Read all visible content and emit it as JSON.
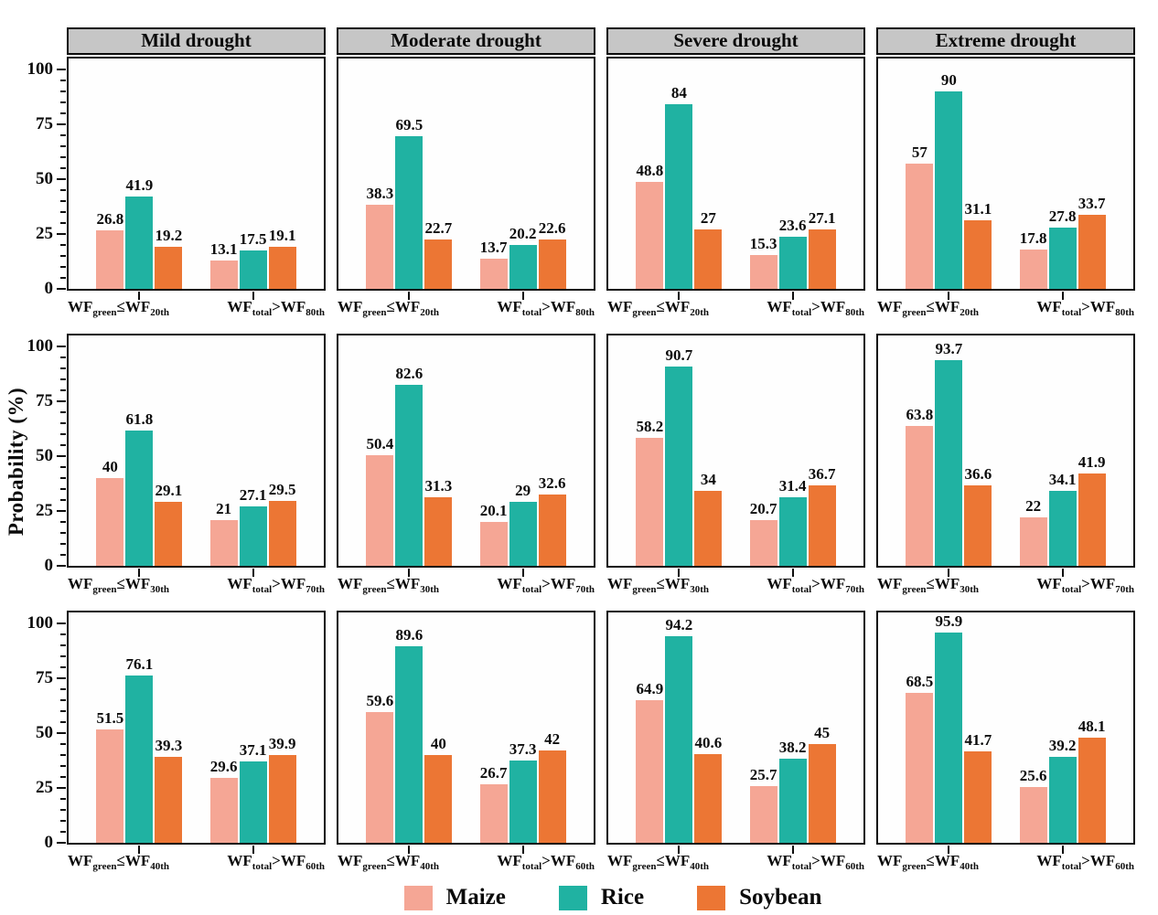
{
  "figure": {
    "ylabel": "Probability (%)",
    "yticks": [
      0,
      25,
      50,
      75,
      100
    ],
    "ylim_display": [
      0,
      100
    ],
    "axis_max": 105,
    "column_titles": [
      "Mild drought",
      "Moderate drought",
      "Severe drought",
      "Extreme drought"
    ],
    "legend": [
      {
        "label": "Maize",
        "color": "#F5A695"
      },
      {
        "label": "Rice",
        "color": "#20B2A2"
      },
      {
        "label": "Soybean",
        "color": "#EC7634"
      }
    ],
    "row_categories": [
      [
        {
          "a": "WF",
          "asub": "green",
          "op": "≤",
          "b": "WF",
          "bsub": "20th"
        },
        {
          "a": "WF",
          "asub": "total",
          "op": ">",
          "b": "WF",
          "bsub": "80th"
        }
      ],
      [
        {
          "a": "WF",
          "asub": "green",
          "op": "≤",
          "b": "WF",
          "bsub": "30th"
        },
        {
          "a": "WF",
          "asub": "total",
          "op": ">",
          "b": "WF",
          "bsub": "70th"
        }
      ],
      [
        {
          "a": "WF",
          "asub": "green",
          "op": "≤",
          "b": "WF",
          "bsub": "40th"
        },
        {
          "a": "WF",
          "asub": "total",
          "op": ">",
          "b": "WF",
          "bsub": "60th"
        }
      ]
    ]
  },
  "chart_data": [
    {
      "type": "bar",
      "row": 0,
      "col": 0,
      "column_title": "Mild drought",
      "categories": [
        "WF_green ≤ WF_20th",
        "WF_total > WF_80th"
      ],
      "series": [
        {
          "name": "Maize",
          "values": [
            26.8,
            13.1
          ]
        },
        {
          "name": "Rice",
          "values": [
            41.9,
            17.5
          ]
        },
        {
          "name": "Soybean",
          "values": [
            19.2,
            19.1
          ]
        }
      ]
    },
    {
      "type": "bar",
      "row": 0,
      "col": 1,
      "column_title": "Moderate drought",
      "categories": [
        "WF_green ≤ WF_20th",
        "WF_total > WF_80th"
      ],
      "series": [
        {
          "name": "Maize",
          "values": [
            38.3,
            13.7
          ]
        },
        {
          "name": "Rice",
          "values": [
            69.5,
            20.2
          ]
        },
        {
          "name": "Soybean",
          "values": [
            22.7,
            22.6
          ]
        }
      ]
    },
    {
      "type": "bar",
      "row": 0,
      "col": 2,
      "column_title": "Severe drought",
      "categories": [
        "WF_green ≤ WF_20th",
        "WF_total > WF_80th"
      ],
      "series": [
        {
          "name": "Maize",
          "values": [
            48.8,
            15.3
          ]
        },
        {
          "name": "Rice",
          "values": [
            84,
            23.6
          ]
        },
        {
          "name": "Soybean",
          "values": [
            27,
            27.1
          ]
        }
      ]
    },
    {
      "type": "bar",
      "row": 0,
      "col": 3,
      "column_title": "Extreme drought",
      "categories": [
        "WF_green ≤ WF_20th",
        "WF_total > WF_80th"
      ],
      "series": [
        {
          "name": "Maize",
          "values": [
            57,
            17.8
          ]
        },
        {
          "name": "Rice",
          "values": [
            90,
            27.8
          ]
        },
        {
          "name": "Soybean",
          "values": [
            31.1,
            33.7
          ]
        }
      ]
    },
    {
      "type": "bar",
      "row": 1,
      "col": 0,
      "column_title": "Mild drought",
      "categories": [
        "WF_green ≤ WF_30th",
        "WF_total > WF_70th"
      ],
      "series": [
        {
          "name": "Maize",
          "values": [
            40,
            21
          ]
        },
        {
          "name": "Rice",
          "values": [
            61.8,
            27.1
          ]
        },
        {
          "name": "Soybean",
          "values": [
            29.1,
            29.5
          ]
        }
      ]
    },
    {
      "type": "bar",
      "row": 1,
      "col": 1,
      "column_title": "Moderate drought",
      "categories": [
        "WF_green ≤ WF_30th",
        "WF_total > WF_70th"
      ],
      "series": [
        {
          "name": "Maize",
          "values": [
            50.4,
            20.1
          ]
        },
        {
          "name": "Rice",
          "values": [
            82.6,
            29
          ]
        },
        {
          "name": "Soybean",
          "values": [
            31.3,
            32.6
          ]
        }
      ]
    },
    {
      "type": "bar",
      "row": 1,
      "col": 2,
      "column_title": "Severe drought",
      "categories": [
        "WF_green ≤ WF_30th",
        "WF_total > WF_70th"
      ],
      "series": [
        {
          "name": "Maize",
          "values": [
            58.2,
            20.7
          ]
        },
        {
          "name": "Rice",
          "values": [
            90.7,
            31.4
          ]
        },
        {
          "name": "Soybean",
          "values": [
            34,
            36.7
          ]
        }
      ]
    },
    {
      "type": "bar",
      "row": 1,
      "col": 3,
      "column_title": "Extreme drought",
      "categories": [
        "WF_green ≤ WF_30th",
        "WF_total > WF_70th"
      ],
      "series": [
        {
          "name": "Maize",
          "values": [
            63.8,
            22
          ]
        },
        {
          "name": "Rice",
          "values": [
            93.7,
            34.1
          ]
        },
        {
          "name": "Soybean",
          "values": [
            36.6,
            41.9
          ]
        }
      ]
    },
    {
      "type": "bar",
      "row": 2,
      "col": 0,
      "column_title": "Mild drought",
      "categories": [
        "WF_green ≤ WF_40th",
        "WF_total > WF_60th"
      ],
      "series": [
        {
          "name": "Maize",
          "values": [
            51.5,
            29.6
          ]
        },
        {
          "name": "Rice",
          "values": [
            76.1,
            37.1
          ]
        },
        {
          "name": "Soybean",
          "values": [
            39.3,
            39.9
          ]
        }
      ]
    },
    {
      "type": "bar",
      "row": 2,
      "col": 1,
      "column_title": "Moderate drought",
      "categories": [
        "WF_green ≤ WF_40th",
        "WF_total > WF_60th"
      ],
      "series": [
        {
          "name": "Maize",
          "values": [
            59.6,
            26.7
          ]
        },
        {
          "name": "Rice",
          "values": [
            89.6,
            37.3
          ]
        },
        {
          "name": "Soybean",
          "values": [
            40,
            42
          ]
        }
      ]
    },
    {
      "type": "bar",
      "row": 2,
      "col": 2,
      "column_title": "Severe drought",
      "categories": [
        "WF_green ≤ WF_40th",
        "WF_total > WF_60th"
      ],
      "series": [
        {
          "name": "Maize",
          "values": [
            64.9,
            25.7
          ]
        },
        {
          "name": "Rice",
          "values": [
            94.2,
            38.2
          ]
        },
        {
          "name": "Soybean",
          "values": [
            40.6,
            45
          ]
        }
      ]
    },
    {
      "type": "bar",
      "row": 2,
      "col": 3,
      "column_title": "Extreme drought",
      "categories": [
        "WF_green ≤ WF_40th",
        "WF_total > WF_60th"
      ],
      "series": [
        {
          "name": "Maize",
          "values": [
            68.5,
            25.6
          ]
        },
        {
          "name": "Rice",
          "values": [
            95.9,
            39.2
          ]
        },
        {
          "name": "Soybean",
          "values": [
            41.7,
            48.1
          ]
        }
      ]
    }
  ]
}
